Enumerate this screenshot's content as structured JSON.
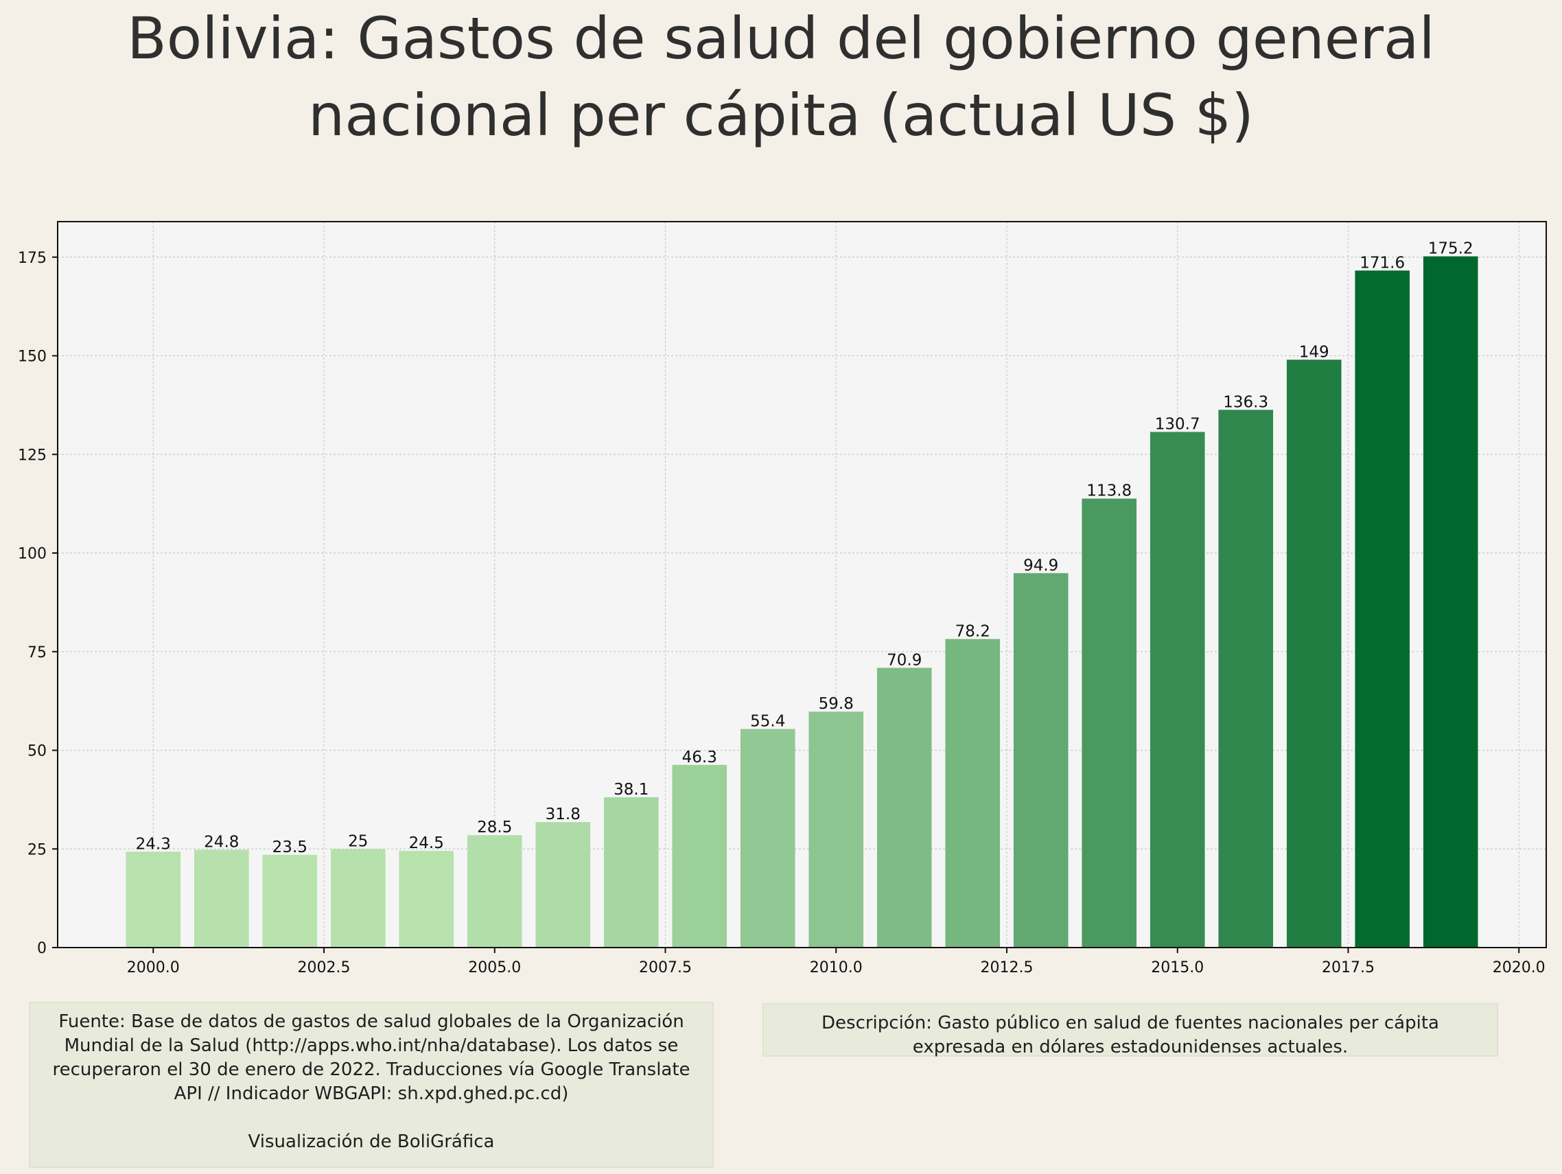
{
  "title": {
    "line1": "Bolivia:  Gastos de salud del gobierno general",
    "line2": "nacional per cápita (actual US $)"
  },
  "notes": {
    "source": "Fuente: Base de datos de gastos de salud globales de la Organización Mundial de la Salud (http://apps.who.int/nha/database). Los datos se recuperaron el 30 de enero de 2022. Traducciones vía Google Translate API // Indicador WBGAPI: sh.xpd.ghed.pc.cd)",
    "credit": "Visualización de BoliGráfica",
    "description": "Descripción: Gasto público en salud de fuentes nacionales per cápita expresada en dólares estadounidenses actuales."
  },
  "chart_data": {
    "type": "bar",
    "x": [
      2000,
      2001,
      2002,
      2003,
      2004,
      2005,
      2006,
      2007,
      2008,
      2009,
      2010,
      2011,
      2012,
      2013,
      2014,
      2015,
      2016,
      2017,
      2018,
      2019
    ],
    "values": [
      24.3,
      24.8,
      23.5,
      25,
      24.5,
      28.5,
      31.8,
      38.1,
      46.3,
      55.4,
      59.8,
      70.9,
      78.2,
      94.9,
      113.8,
      130.7,
      136.3,
      149,
      171.6,
      175.2
    ],
    "data_labels": [
      "24.3",
      "24.8",
      "23.5",
      "25",
      "24.5",
      "28.5",
      "31.8",
      "38.1",
      "46.3",
      "55.4",
      "59.8",
      "70.9",
      "78.2",
      "94.9",
      "113.8",
      "130.7",
      "136.3",
      "149",
      "171.6",
      "175.2"
    ],
    "xticks": [
      "2000.0",
      "2002.5",
      "2005.0",
      "2007.5",
      "2010.0",
      "2012.5",
      "2015.0",
      "2017.5",
      "2020.0"
    ],
    "xtick_values": [
      2000,
      2002.5,
      2005,
      2007.5,
      2010,
      2012.5,
      2015,
      2017.5,
      2020
    ],
    "yticks": [
      "0",
      "25",
      "50",
      "75",
      "100",
      "125",
      "150",
      "175"
    ],
    "ytick_values": [
      0,
      25,
      50,
      75,
      100,
      125,
      150,
      175
    ],
    "xlim": [
      1998.6,
      2020.4
    ],
    "ylim": [
      0,
      184
    ],
    "grid": true,
    "colormap": "greens",
    "colors": {
      "low": "#b8e2ae",
      "high": "#00682c",
      "plot_bg": "#f5f5f5",
      "grid": "#c8c8c8"
    }
  }
}
